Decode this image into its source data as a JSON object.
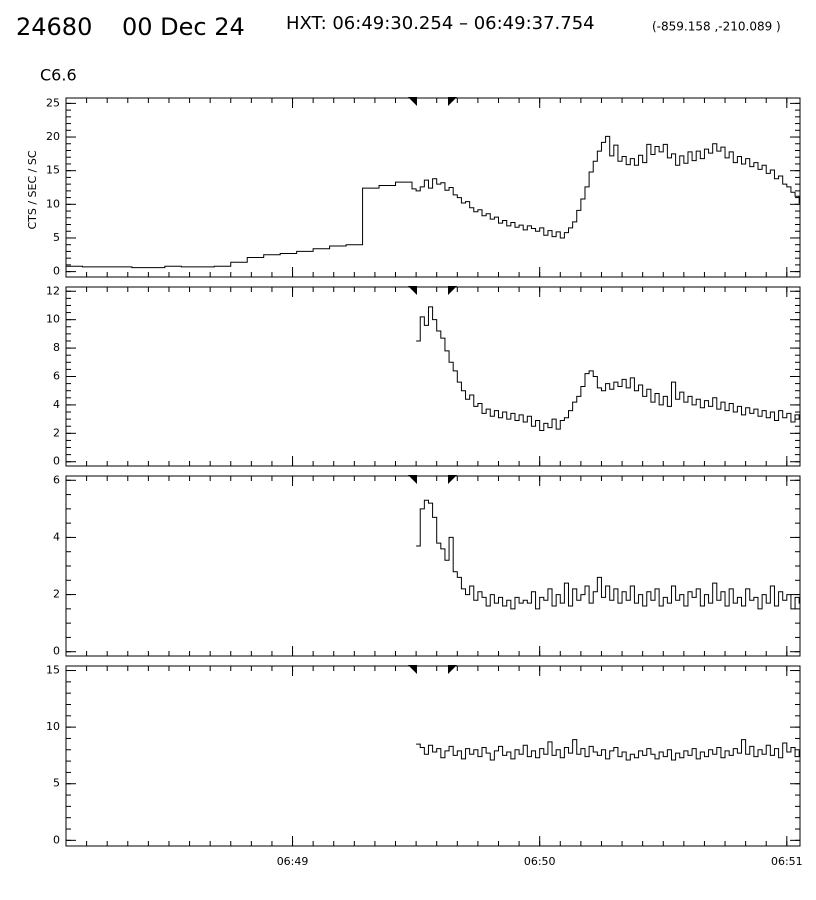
{
  "header": {
    "id": "24680",
    "date": "00 Dec 24",
    "interval": "HXT: 06:49:30.254 – 06:49:37.754",
    "position": "(-859.158 ,-210.089 )"
  },
  "chart_data": [
    {
      "type": "line",
      "annotation": "C6.6",
      "ylabel": "CTS / SEC / SC",
      "xlim": [
        5,
        183.2
      ],
      "ylim": [
        -0.8,
        25.8
      ],
      "yticks": [
        0,
        5,
        10,
        15,
        20,
        25
      ],
      "x": [
        5,
        9,
        13,
        17,
        21,
        25,
        29,
        33,
        37,
        41,
        45,
        49,
        53,
        57,
        61,
        65,
        69,
        73,
        77,
        81,
        85,
        89,
        90,
        91,
        92,
        93,
        94,
        95,
        96,
        97,
        98,
        99,
        100,
        101,
        102,
        103,
        104,
        105,
        106,
        107,
        108,
        109,
        110,
        111,
        112,
        113,
        114,
        115,
        116,
        117,
        118,
        119,
        120,
        121,
        122,
        123,
        124,
        125,
        126,
        127,
        128,
        129,
        130,
        131,
        132,
        133,
        134,
        135,
        136,
        137,
        138,
        139,
        140,
        141,
        142,
        143,
        144,
        145,
        146,
        147,
        148,
        149,
        150,
        151,
        152,
        153,
        154,
        155,
        156,
        157,
        158,
        159,
        160,
        161,
        162,
        163,
        164,
        165,
        166,
        167,
        168,
        169,
        170,
        171,
        172,
        173,
        174,
        175,
        176,
        177,
        178,
        179,
        180,
        181,
        182,
        183
      ],
      "series": [
        {
          "color": "#000000",
          "values": [
            0.8,
            0.7,
            0.7,
            0.7,
            0.6,
            0.6,
            0.8,
            0.7,
            0.7,
            0.8,
            1.4,
            2.1,
            2.5,
            2.7,
            3.0,
            3.4,
            3.8,
            4.0,
            12.4,
            12.8,
            13.3,
            12.3,
            12.0,
            12.6,
            13.6,
            12.4,
            13.8,
            13.0,
            13.2,
            12.1,
            12.5,
            11.4,
            11.0,
            10.2,
            10.4,
            9.5,
            8.9,
            9.2,
            8.3,
            8.6,
            7.8,
            8.1,
            7.2,
            7.6,
            6.8,
            7.3,
            6.6,
            6.9,
            6.2,
            6.8,
            6.4,
            6.0,
            6.5,
            5.4,
            6.1,
            5.2,
            5.9,
            5.0,
            5.8,
            6.5,
            7.4,
            9.1,
            10.8,
            12.6,
            14.8,
            16.4,
            17.9,
            19.2,
            20.1,
            17.2,
            18.8,
            16.4,
            17.1,
            15.9,
            16.8,
            15.8,
            17.3,
            16.2,
            18.9,
            17.4,
            18.6,
            17.8,
            18.9,
            16.9,
            17.5,
            15.8,
            17.2,
            16.1,
            17.8,
            16.5,
            17.9,
            16.8,
            18.2,
            17.6,
            19.0,
            17.9,
            18.5,
            16.9,
            17.8,
            16.2,
            17.1,
            16.0,
            16.8,
            15.6,
            16.2,
            15.2,
            15.8,
            14.6,
            15.1,
            13.8,
            14.2,
            13.0,
            12.6,
            11.8,
            11.2,
            10.2
          ]
        }
      ]
    },
    {
      "type": "line",
      "xlim": [
        5,
        183.2
      ],
      "ylim": [
        -0.3,
        12.3
      ],
      "yticks": [
        0,
        2,
        4,
        6,
        8,
        10,
        12
      ],
      "x": [
        90,
        91,
        92,
        93,
        94,
        95,
        96,
        97,
        98,
        99,
        100,
        101,
        102,
        103,
        104,
        105,
        106,
        107,
        108,
        109,
        110,
        111,
        112,
        113,
        114,
        115,
        116,
        117,
        118,
        119,
        120,
        121,
        122,
        123,
        124,
        125,
        126,
        127,
        128,
        129,
        130,
        131,
        132,
        133,
        134,
        135,
        136,
        137,
        138,
        139,
        140,
        141,
        142,
        143,
        144,
        145,
        146,
        147,
        148,
        149,
        150,
        151,
        152,
        153,
        154,
        155,
        156,
        157,
        158,
        159,
        160,
        161,
        162,
        163,
        164,
        165,
        166,
        167,
        168,
        169,
        170,
        171,
        172,
        173,
        174,
        175,
        176,
        177,
        178,
        179,
        180,
        181,
        182,
        183
      ],
      "series": [
        {
          "color": "#000000",
          "values": [
            8.5,
            10.2,
            9.6,
            10.9,
            10.0,
            9.2,
            8.7,
            7.8,
            7.0,
            6.4,
            5.6,
            5.0,
            4.4,
            4.7,
            3.9,
            4.1,
            3.4,
            3.7,
            3.2,
            3.6,
            3.1,
            3.5,
            3.0,
            3.4,
            2.9,
            3.3,
            2.8,
            3.2,
            2.5,
            2.9,
            2.2,
            2.7,
            2.4,
            3.0,
            2.3,
            2.9,
            3.1,
            3.6,
            4.2,
            4.6,
            5.3,
            6.2,
            6.4,
            6.0,
            5.2,
            5.0,
            5.5,
            5.1,
            5.6,
            5.3,
            5.8,
            5.2,
            5.9,
            5.0,
            5.4,
            4.6,
            5.1,
            4.2,
            4.8,
            4.0,
            4.6,
            3.9,
            5.6,
            4.4,
            4.9,
            4.2,
            4.6,
            4.0,
            4.4,
            3.8,
            4.3,
            3.9,
            4.5,
            3.7,
            4.2,
            3.6,
            4.1,
            3.5,
            3.9,
            3.3,
            3.8,
            3.4,
            3.7,
            3.2,
            3.6,
            3.1,
            3.5,
            2.9,
            3.6,
            3.1,
            3.4,
            2.8,
            3.3,
            3.0
          ]
        }
      ]
    },
    {
      "type": "line",
      "xlim": [
        5,
        183.2
      ],
      "ylim": [
        -0.15,
        6.15
      ],
      "yticks": [
        0,
        2,
        4,
        6
      ],
      "x": [
        90,
        91,
        92,
        93,
        94,
        95,
        96,
        97,
        98,
        99,
        100,
        101,
        102,
        103,
        104,
        105,
        106,
        107,
        108,
        109,
        110,
        111,
        112,
        113,
        114,
        115,
        116,
        117,
        118,
        119,
        120,
        121,
        122,
        123,
        124,
        125,
        126,
        127,
        128,
        129,
        130,
        131,
        132,
        133,
        134,
        135,
        136,
        137,
        138,
        139,
        140,
        141,
        142,
        143,
        144,
        145,
        146,
        147,
        148,
        149,
        150,
        151,
        152,
        153,
        154,
        155,
        156,
        157,
        158,
        159,
        160,
        161,
        162,
        163,
        164,
        165,
        166,
        167,
        168,
        169,
        170,
        171,
        172,
        173,
        174,
        175,
        176,
        177,
        178,
        179,
        180,
        181,
        182,
        183
      ],
      "series": [
        {
          "color": "#000000",
          "values": [
            3.7,
            5.0,
            5.3,
            5.2,
            4.7,
            3.8,
            3.6,
            3.2,
            4.0,
            2.8,
            2.6,
            2.2,
            2.0,
            2.3,
            1.8,
            2.1,
            1.9,
            1.6,
            2.0,
            1.7,
            1.9,
            1.6,
            1.8,
            1.5,
            1.9,
            1.7,
            1.8,
            1.7,
            2.1,
            1.5,
            1.9,
            1.8,
            2.2,
            1.6,
            2.0,
            1.7,
            2.4,
            1.6,
            2.2,
            1.8,
            2.0,
            2.3,
            1.7,
            2.1,
            2.6,
            1.9,
            2.3,
            1.8,
            2.2,
            1.7,
            2.1,
            1.8,
            2.3,
            1.7,
            2.0,
            1.6,
            2.1,
            1.8,
            2.2,
            1.6,
            1.9,
            1.7,
            2.3,
            1.8,
            2.0,
            1.6,
            2.1,
            1.9,
            2.2,
            1.6,
            2.0,
            1.7,
            2.4,
            1.8,
            2.1,
            1.6,
            2.2,
            1.7,
            1.9,
            1.6,
            2.2,
            1.8,
            1.9,
            1.5,
            2.0,
            1.7,
            2.3,
            1.6,
            2.1,
            1.8,
            2.0,
            1.5,
            1.9,
            1.7
          ]
        }
      ]
    },
    {
      "type": "line",
      "xlim": [
        5,
        183.2
      ],
      "ylim": [
        -0.5,
        15.4
      ],
      "yticks": [
        0,
        5,
        10,
        15
      ],
      "xticks": [
        {
          "value": 60,
          "label": "06:49"
        },
        {
          "value": 120,
          "label": "06:50"
        },
        {
          "value": 180,
          "label": "06:51"
        }
      ],
      "x": [
        90,
        91,
        92,
        93,
        94,
        95,
        96,
        97,
        98,
        99,
        100,
        101,
        102,
        103,
        104,
        105,
        106,
        107,
        108,
        109,
        110,
        111,
        112,
        113,
        114,
        115,
        116,
        117,
        118,
        119,
        120,
        121,
        122,
        123,
        124,
        125,
        126,
        127,
        128,
        129,
        130,
        131,
        132,
        133,
        134,
        135,
        136,
        137,
        138,
        139,
        140,
        141,
        142,
        143,
        144,
        145,
        146,
        147,
        148,
        149,
        150,
        151,
        152,
        153,
        154,
        155,
        156,
        157,
        158,
        159,
        160,
        161,
        162,
        163,
        164,
        165,
        166,
        167,
        168,
        169,
        170,
        171,
        172,
        173,
        174,
        175,
        176,
        177,
        178,
        179,
        180,
        181,
        182,
        183
      ],
      "series": [
        {
          "color": "#000000",
          "values": [
            8.5,
            8.2,
            7.6,
            8.4,
            7.8,
            8.1,
            7.3,
            7.9,
            8.3,
            7.5,
            7.9,
            7.2,
            8.1,
            7.6,
            8.0,
            7.4,
            8.2,
            7.7,
            7.1,
            7.9,
            8.3,
            7.5,
            7.8,
            7.2,
            8.0,
            7.6,
            8.4,
            7.4,
            7.9,
            7.3,
            8.1,
            7.6,
            8.7,
            7.5,
            8.0,
            7.3,
            8.2,
            7.7,
            8.9,
            7.6,
            8.1,
            7.4,
            8.3,
            7.8,
            7.5,
            8.0,
            7.2,
            7.9,
            8.2,
            7.4,
            7.8,
            7.1,
            7.6,
            7.3,
            7.9,
            7.5,
            8.1,
            7.6,
            7.2,
            7.8,
            7.4,
            8.0,
            7.1,
            7.7,
            7.3,
            7.9,
            7.5,
            8.1,
            7.2,
            7.8,
            7.4,
            8.0,
            7.6,
            8.2,
            7.3,
            7.9,
            7.5,
            8.1,
            7.7,
            8.9,
            7.6,
            8.3,
            7.4,
            8.0,
            7.6,
            8.4,
            7.5,
            8.1,
            7.3,
            8.6,
            7.8,
            8.2,
            7.4,
            7.9
          ]
        }
      ]
    }
  ]
}
